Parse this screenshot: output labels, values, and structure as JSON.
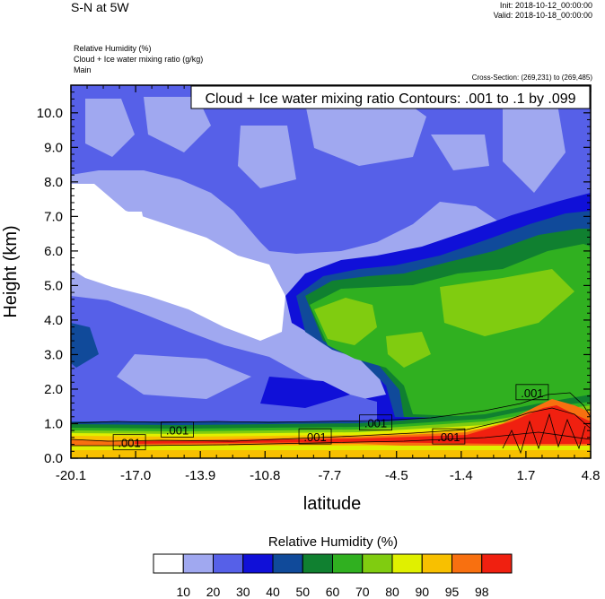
{
  "header": {
    "title": "S-N at 5W",
    "init": "Init: 2018-10-12_00:00:00",
    "valid": "Valid: 2018-10-18_00:00:00",
    "field_lines": [
      "Relative Humidity   (%)",
      "Cloud + Ice water mixing ratio   (g/kg)",
      "Main"
    ],
    "cross_section": "Cross-Section: (269,231) to (269,485)"
  },
  "chart_data": {
    "type": "heatmap",
    "contour_label": "Cloud + Ice water mixing ratio Contours: .001 to .1 by .099",
    "xlabel": "latitude",
    "ylabel": "Height (km)",
    "x_ticks": [
      "-20.1",
      "-17.0",
      "-13.9",
      "-10.8",
      "-7.7",
      "-4.5",
      "-1.4",
      "1.7",
      "4.8"
    ],
    "y_ticks": [
      "0.0",
      "1.0",
      "2.0",
      "3.0",
      "4.0",
      "5.0",
      "6.0",
      "7.0",
      "8.0",
      "9.0",
      "10.0"
    ],
    "xlim": [
      -20.1,
      4.8
    ],
    "ylim": [
      0,
      10.8
    ],
    "contour_labels": [
      {
        "text": ".001",
        "x": -17.3,
        "y": 0.45
      },
      {
        "text": ".001",
        "x": -15.0,
        "y": 0.82
      },
      {
        "text": ".001",
        "x": -8.4,
        "y": 0.62
      },
      {
        "text": ".001",
        "x": -5.5,
        "y": 1.02
      },
      {
        "text": ".001",
        "x": -2.0,
        "y": 0.62
      },
      {
        "text": ".001",
        "x": 2.0,
        "y": 1.9
      }
    ],
    "colorbar": {
      "title": "Relative Humidity  (%)",
      "levels": [
        "10",
        "20",
        "30",
        "40",
        "50",
        "60",
        "70",
        "80",
        "90",
        "95",
        "98"
      ],
      "colors": [
        "#ffffff",
        "#a0a8f0",
        "#5660e8",
        "#1010d8",
        "#104a9a",
        "#108030",
        "#30b020",
        "#80cc10",
        "#e0f000",
        "#f8c000",
        "#f87010",
        "#f02010"
      ]
    }
  }
}
